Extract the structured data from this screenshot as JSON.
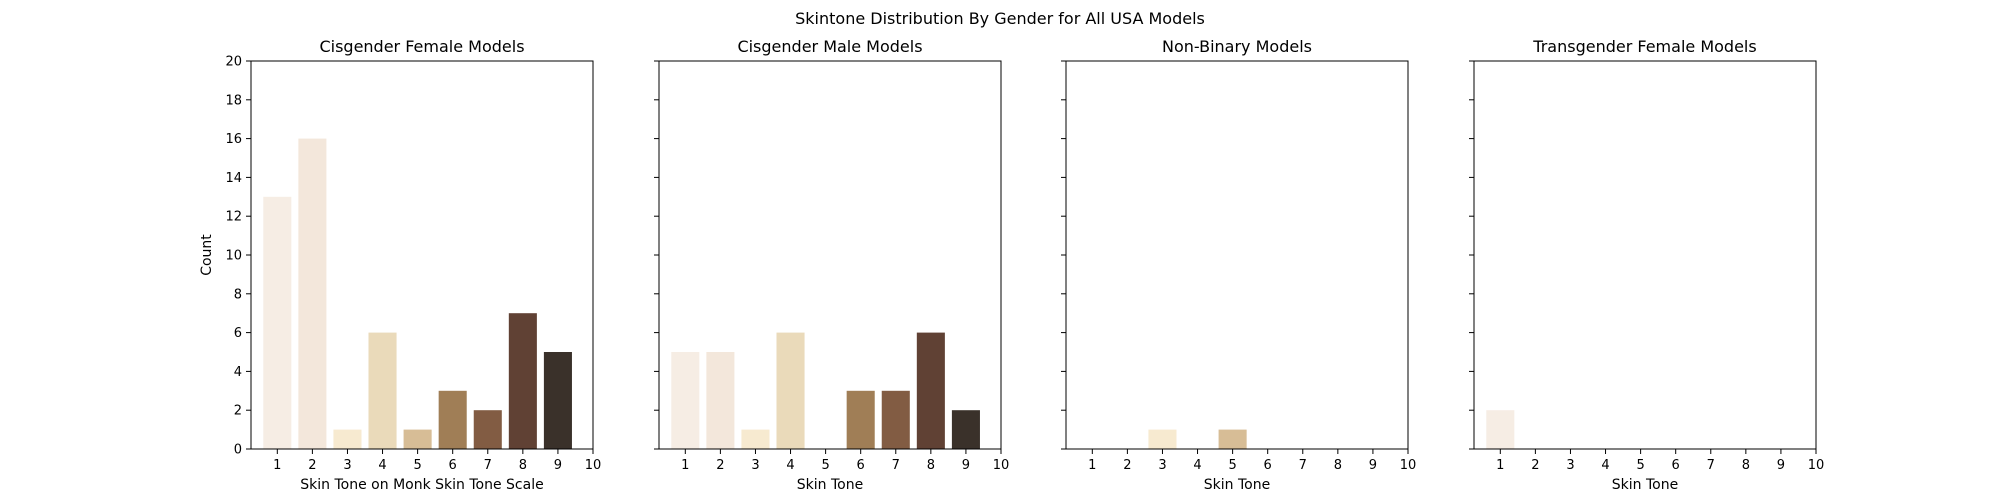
{
  "figure": {
    "suptitle": "Skintone Distribution By Gender for All USA Models"
  },
  "chart_data": [
    {
      "type": "bar",
      "title": "Cisgender Female Models",
      "xlabel": "Skin Tone on Monk Skin Tone Scale",
      "ylabel": "Count",
      "categories": [
        "1",
        "2",
        "3",
        "4",
        "5",
        "6",
        "7",
        "8",
        "9"
      ],
      "values": [
        13,
        16,
        1,
        6,
        1,
        3,
        2,
        7,
        5
      ],
      "xticks": [
        "1",
        "2",
        "3",
        "4",
        "5",
        "6",
        "7",
        "8",
        "9",
        "10"
      ],
      "ylim": [
        0,
        20
      ],
      "yticks": [
        0,
        2,
        4,
        6,
        8,
        10,
        12,
        14,
        16,
        18,
        20
      ],
      "grid": false
    },
    {
      "type": "bar",
      "title": "Cisgender Male Models",
      "xlabel": "Skin Tone",
      "ylabel": "",
      "categories": [
        "1",
        "2",
        "3",
        "4",
        "5",
        "6",
        "7",
        "8",
        "9"
      ],
      "values": [
        5,
        5,
        1,
        6,
        0,
        3,
        3,
        6,
        2
      ],
      "xticks": [
        "1",
        "2",
        "3",
        "4",
        "5",
        "6",
        "7",
        "8",
        "9",
        "10"
      ],
      "ylim": [
        0,
        20
      ],
      "yticks": [
        0,
        2,
        4,
        6,
        8,
        10,
        12,
        14,
        16,
        18,
        20
      ],
      "grid": false
    },
    {
      "type": "bar",
      "title": "Non-Binary Models",
      "xlabel": "Skin Tone",
      "ylabel": "",
      "categories": [
        "1",
        "2",
        "3",
        "4",
        "5",
        "6",
        "7",
        "8",
        "9"
      ],
      "values": [
        0,
        0,
        1,
        0,
        1,
        0,
        0,
        0,
        0
      ],
      "xticks": [
        "1",
        "2",
        "3",
        "4",
        "5",
        "6",
        "7",
        "8",
        "9",
        "10"
      ],
      "ylim": [
        0,
        20
      ],
      "yticks": [
        0,
        2,
        4,
        6,
        8,
        10,
        12,
        14,
        16,
        18,
        20
      ],
      "grid": false
    },
    {
      "type": "bar",
      "title": "Transgender Female Models",
      "xlabel": "Skin Tone",
      "ylabel": "",
      "categories": [
        "1",
        "2",
        "3",
        "4",
        "5",
        "6",
        "7",
        "8",
        "9"
      ],
      "values": [
        2,
        0,
        0,
        0,
        0,
        0,
        0,
        0,
        0
      ],
      "xticks": [
        "1",
        "2",
        "3",
        "4",
        "5",
        "6",
        "7",
        "8",
        "9",
        "10"
      ],
      "ylim": [
        0,
        20
      ],
      "yticks": [
        0,
        2,
        4,
        6,
        8,
        10,
        12,
        14,
        16,
        18,
        20
      ],
      "grid": false
    }
  ],
  "colors": {
    "monk_scale": [
      "#f6ede4",
      "#f3e7db",
      "#f7ead0",
      "#eadaba",
      "#d7bd96",
      "#a07e56",
      "#825c43",
      "#604134",
      "#3a312a"
    ],
    "axis": "#000000"
  }
}
